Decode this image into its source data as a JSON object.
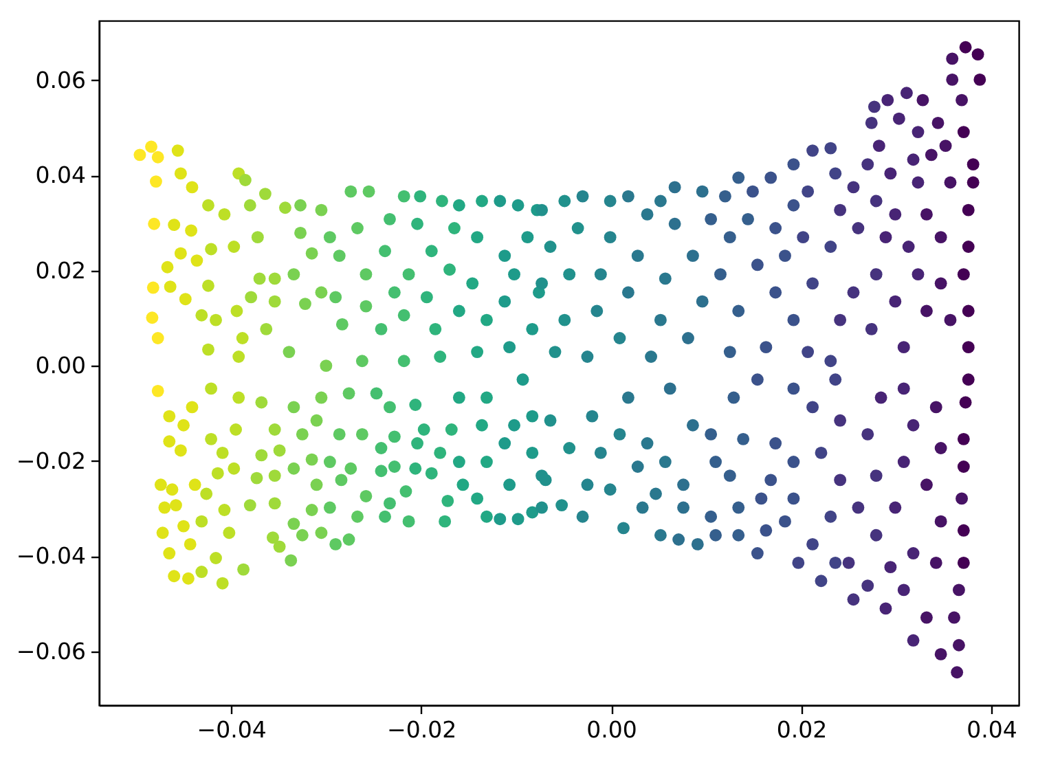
{
  "chart_data": {
    "type": "scatter",
    "marker": "circle",
    "xlim": [
      -0.0539,
      0.0429
    ],
    "ylim": [
      -0.0713,
      0.0725
    ],
    "xticks": [
      {
        "value": -0.04,
        "label": "−0.04"
      },
      {
        "value": -0.02,
        "label": "−0.02"
      },
      {
        "value": 0,
        "label": "0.00"
      },
      {
        "value": 0.02,
        "label": "0.02"
      },
      {
        "value": 0.04,
        "label": "0.04"
      }
    ],
    "yticks": [
      {
        "value": -0.06,
        "label": "−0.06"
      },
      {
        "value": -0.04,
        "label": "−0.04"
      },
      {
        "value": -0.02,
        "label": "−0.02"
      },
      {
        "value": 0,
        "label": "0.00"
      },
      {
        "value": 0.02,
        "label": "0.02"
      },
      {
        "value": 0.04,
        "label": "0.04"
      },
      {
        "value": 0.06,
        "label": "0.06"
      }
    ],
    "x": [
      -0.0496,
      -0.0484,
      -0.0456,
      -0.0477,
      -0.0479,
      -0.0453,
      -0.0441,
      -0.0481,
      -0.046,
      -0.0442,
      -0.0453,
      -0.0467,
      -0.0482,
      -0.0464,
      -0.0483,
      -0.0477,
      -0.0448,
      -0.0436,
      -0.0421,
      -0.0424,
      -0.0407,
      -0.0392,
      -0.0385,
      -0.038,
      -0.0364,
      -0.0397,
      -0.0372,
      -0.0343,
      -0.0327,
      -0.0305,
      -0.0327,
      -0.0296,
      -0.0274,
      -0.0255,
      -0.0267,
      -0.0286,
      -0.0315,
      -0.0354,
      -0.0334,
      -0.037,
      -0.0424,
      -0.0431,
      -0.0416,
      -0.0394,
      -0.0379,
      -0.0363,
      -0.0354,
      -0.0322,
      -0.0305,
      -0.0283,
      -0.029,
      -0.0258,
      -0.0258,
      -0.0238,
      -0.0233,
      -0.0218,
      -0.0201,
      -0.0204,
      -0.0189,
      -0.0213,
      -0.0228,
      -0.0242,
      -0.0218,
      -0.0194,
      -0.0185,
      -0.0178,
      -0.016,
      -0.0136,
      -0.0165,
      -0.0141,
      -0.017,
      -0.0146,
      -0.016,
      -0.0131,
      -0.0117,
      -0.0098,
      -0.0078,
      -0.0112,
      -0.0088,
      -0.0102,
      -0.0076,
      -0.0112,
      -0.0083,
      -0.0107,
      -0.0141,
      -0.018,
      -0.0218,
      -0.0262,
      -0.03,
      -0.0339,
      -0.0392,
      -0.0424,
      -0.0388,
      -0.0477,
      -0.0465,
      -0.045,
      -0.0465,
      -0.0453,
      -0.0474,
      -0.0462,
      -0.047,
      -0.0458,
      -0.0472,
      -0.045,
      -0.0465,
      -0.0443,
      -0.046,
      -0.0445,
      -0.0431,
      -0.0409,
      -0.0416,
      -0.0431,
      -0.0402,
      -0.0387,
      -0.0407,
      -0.0438,
      -0.0426,
      -0.0414,
      -0.0397,
      -0.0421,
      -0.0409,
      -0.0395,
      -0.0441,
      -0.0421,
      -0.0392,
      -0.038,
      -0.0373,
      -0.0354,
      -0.0368,
      -0.0349,
      -0.0356,
      -0.0349,
      -0.0337,
      -0.0354,
      -0.0334,
      -0.0325,
      -0.0305,
      -0.029,
      -0.0276,
      -0.0315,
      -0.0296,
      -0.031,
      -0.0334,
      -0.0315,
      -0.0296,
      -0.0274,
      -0.0284,
      -0.0354,
      -0.0325,
      -0.031,
      -0.0286,
      -0.0334,
      -0.0368,
      -0.0305,
      -0.0276,
      -0.0262,
      -0.0258,
      -0.0267,
      -0.0238,
      -0.0233,
      -0.0213,
      -0.0216,
      -0.0242,
      -0.0228,
      -0.0206,
      -0.0242,
      -0.0228,
      -0.0204,
      -0.0197,
      -0.0233,
      -0.0206,
      -0.0247,
      -0.0189,
      -0.0172,
      -0.0175,
      -0.018,
      -0.0168,
      -0.016,
      -0.0156,
      -0.0141,
      -0.0131,
      -0.0117,
      -0.0098,
      -0.0083,
      -0.0107,
      -0.0131,
      -0.0112,
      -0.0136,
      -0.0102,
      -0.0083,
      -0.016,
      -0.0131,
      -0.0093,
      -0.0073,
      -0.0083,
      -0.0064,
      -0.0069,
      -0.0073,
      -0.0052,
      -0.003,
      -0.0044,
      -0.002,
      -0.0011,
      -0.0025,
      -0.0001,
      0.0013,
      0.0033,
      0.0052,
      0.0071,
      0.0091,
      0.011,
      0.0134,
      0.0154,
      0.0163,
      0.0158,
      0.0134,
      0.0105,
      0.0076,
      0.0047,
      0.0028,
      0.0009,
      0.0018,
      0.0038,
      0.0057,
      0.0076,
      0.0086,
      0.0062,
      0.011,
      0.0125,
      0.0105,
      0.0139,
      0.0129,
      0.0154,
      0.0173,
      0.0168,
      0.0192,
      0.0192,
      0.0197,
      0.0221,
      0.0212,
      0.0236,
      0.0255,
      0.027,
      0.0289,
      0.0308,
      0.0318,
      0.0332,
      0.0347,
      0.0364,
      0.0366,
      0.0361,
      0.0366,
      0.0371,
      0.0371,
      0.0369,
      0.0371,
      0.0371,
      0.0373,
      0.0376,
      0.0342,
      0.0347,
      0.0332,
      0.0347,
      0.0342,
      0.0318,
      0.0299,
      0.0308,
      0.0318,
      0.0308,
      0.0279,
      0.026,
      0.0279,
      0.027,
      0.0284,
      0.025,
      0.0231,
      0.0241,
      0.0221,
      0.0241,
      0.0212,
      0.0192,
      0.0236,
      0.0183,
      0.0294,
      0.0373,
      0.0386,
      0.0359,
      0.0388,
      0.0359,
      0.0369,
      0.0277,
      0.0291,
      0.0311,
      0.0328,
      0.0274,
      0.0303,
      0.0323,
      0.0344,
      0.0371,
      0.0282,
      0.0352,
      0.0381,
      0.0337,
      0.0318,
      0.0381,
      0.0357,
      0.0323,
      0.0294,
      0.027,
      0.0255,
      0.0212,
      0.0231,
      0.0192,
      0.0168,
      0.0134,
      0.0149,
      0.012,
      0.0096,
      0.0067,
      0.0052,
      0.0018,
      -0.0001,
      -0.003,
      -0.0049,
      -0.0073,
      0.0207,
      0.0236,
      0.0376,
      0.0376,
      0.0371,
      0.0376,
      0.0376,
      0.0347,
      0.0347,
      0.0357,
      0.0332,
      0.0323,
      0.0332,
      0.0313,
      0.0299,
      0.0279,
      0.0289,
      0.0279,
      0.0299,
      0.0308,
      0.0274,
      0.026,
      0.0241,
      0.0231,
      0.0255,
      0.0241,
      0.0231,
      0.0212,
      0.0202,
      0.0192,
      0.0173,
      0.0183,
      0.0192,
      0.0207,
      0.0173,
      0.0163,
      0.0154,
      0.0144,
      0.0125,
      0.0115,
      0.0134,
      0.0125,
      0.0105,
      0.0086,
      0.0096,
      0.0081,
      0.0067,
      0.0057,
      0.0052,
      0.0042,
      0.0038,
      0.0028,
      0.0018,
      0.0009,
      -0.0001,
      -0.0011,
      -0.0015,
      -0.0025,
      -0.0035,
      -0.0044,
      -0.0049,
      -0.0059,
      -0.0064,
      -0.0073
    ],
    "values": [
      0.0443,
      0.046,
      0.0452,
      0.0438,
      0.0387,
      0.0404,
      0.0375,
      0.0298,
      0.0296,
      0.0284,
      0.0236,
      0.0207,
      0.0164,
      0.0166,
      0.0101,
      0.0058,
      0.014,
      0.0221,
      0.0245,
      0.0337,
      0.0318,
      0.0404,
      0.039,
      0.0337,
      0.0361,
      0.025,
      0.027,
      0.0332,
      0.0337,
      0.0327,
      0.0279,
      0.027,
      0.0366,
      0.0366,
      0.0289,
      0.0231,
      0.0236,
      0.0183,
      0.0192,
      0.0183,
      0.0168,
      0.0106,
      0.0096,
      0.0115,
      0.0144,
      0.0077,
      0.0135,
      0.013,
      0.0154,
      0.0087,
      0.0144,
      0.0125,
      0.0192,
      0.0241,
      0.0308,
      0.0356,
      0.0356,
      0.0298,
      0.0241,
      0.0192,
      0.0154,
      0.0077,
      0.0106,
      0.0144,
      0.0077,
      0.0346,
      0.0337,
      0.0346,
      0.0289,
      0.027,
      0.0202,
      0.0173,
      0.0115,
      0.0096,
      0.0346,
      0.0337,
      0.0327,
      0.0231,
      0.027,
      0.0192,
      0.0154,
      0.0135,
      0.0077,
      0.0039,
      0.0029,
      0.0019,
      0.001,
      0.001,
      0.0,
      0.0029,
      0.0019,
      0.0034,
      0.0058,
      -0.0053,
      -0.0106,
      -0.0125,
      -0.0159,
      -0.0178,
      -0.025,
      -0.026,
      -0.0298,
      -0.0293,
      -0.0351,
      -0.0337,
      -0.0394,
      -0.0375,
      -0.0442,
      -0.0447,
      -0.0433,
      -0.0457,
      -0.0404,
      -0.0327,
      -0.0351,
      -0.0428,
      -0.0303,
      -0.025,
      -0.0269,
      -0.0226,
      -0.0216,
      -0.0154,
      -0.0183,
      -0.0134,
      -0.0087,
      -0.0048,
      -0.0067,
      -0.0293,
      -0.0236,
      -0.0231,
      -0.0188,
      -0.0178,
      -0.0361,
      -0.038,
      -0.0409,
      -0.0289,
      -0.0332,
      -0.0356,
      -0.0351,
      -0.0375,
      -0.0365,
      -0.0303,
      -0.0298,
      -0.025,
      -0.0216,
      -0.0197,
      -0.0202,
      -0.0216,
      -0.024,
      -0.0134,
      -0.0144,
      -0.0115,
      -0.0144,
      -0.0087,
      -0.0077,
      -0.0067,
      -0.0058,
      -0.0144,
      -0.0274,
      -0.0317,
      -0.0317,
      -0.0289,
      -0.0327,
      -0.0264,
      -0.0221,
      -0.0212,
      -0.0216,
      -0.0173,
      -0.0149,
      -0.0163,
      -0.0134,
      -0.0087,
      -0.0082,
      -0.0058,
      -0.0226,
      -0.0284,
      -0.0327,
      -0.0183,
      -0.0134,
      -0.0202,
      -0.025,
      -0.0279,
      -0.0317,
      -0.0322,
      -0.0322,
      -0.0308,
      -0.025,
      -0.0202,
      -0.0163,
      -0.0125,
      -0.0125,
      -0.0106,
      -0.0067,
      -0.0067,
      -0.0029,
      -0.0231,
      -0.0183,
      -0.0115,
      -0.024,
      -0.0298,
      -0.0293,
      -0.0317,
      -0.0173,
      -0.0106,
      -0.0183,
      -0.025,
      -0.026,
      -0.0341,
      -0.0298,
      -0.0356,
      -0.0365,
      -0.0375,
      -0.0356,
      -0.0356,
      -0.0394,
      -0.0346,
      -0.0279,
      -0.0298,
      -0.0317,
      -0.0298,
      -0.0269,
      -0.0212,
      -0.0144,
      -0.0067,
      -0.0163,
      -0.0202,
      -0.025,
      -0.0125,
      -0.0048,
      -0.0202,
      -0.0231,
      -0.0144,
      -0.0154,
      -0.0067,
      -0.0029,
      -0.0163,
      -0.024,
      -0.0202,
      -0.0279,
      -0.0414,
      -0.0452,
      -0.0375,
      -0.0414,
      -0.0491,
      -0.0462,
      -0.051,
      -0.0471,
      -0.0577,
      -0.0529,
      -0.0606,
      -0.0644,
      -0.0587,
      -0.0529,
      -0.0471,
      -0.0414,
      -0.0346,
      -0.0279,
      -0.0212,
      -0.0154,
      -0.0077,
      -0.0029,
      -0.0414,
      -0.0327,
      -0.025,
      -0.0173,
      -0.0087,
      -0.0394,
      -0.0298,
      -0.0202,
      -0.0125,
      -0.0048,
      -0.0356,
      -0.0298,
      -0.0231,
      -0.0144,
      -0.0067,
      -0.0414,
      -0.0317,
      -0.024,
      -0.0183,
      -0.0115,
      -0.0087,
      -0.0048,
      -0.0029,
      -0.0327,
      -0.0423,
      0.0669,
      0.0654,
      0.0645,
      0.0601,
      0.0601,
      0.0558,
      0.0544,
      0.0558,
      0.0573,
      0.0558,
      0.051,
      0.0519,
      0.0491,
      0.051,
      0.0491,
      0.0462,
      0.0462,
      0.0423,
      0.0443,
      0.0433,
      0.0385,
      0.0385,
      0.0385,
      0.0404,
      0.0423,
      0.0375,
      0.0452,
      0.0457,
      0.0423,
      0.0395,
      0.0395,
      0.0366,
      0.0356,
      0.0366,
      0.0375,
      0.0346,
      0.0356,
      0.0346,
      0.0356,
      0.0346,
      0.0327,
      0.0366,
      0.0404,
      0.0327,
      0.025,
      0.0192,
      0.0115,
      0.0039,
      0.027,
      0.0173,
      0.0096,
      0.0318,
      0.0192,
      0.0115,
      0.025,
      0.0318,
      0.0346,
      0.027,
      0.0192,
      0.0135,
      0.0039,
      0.0077,
      0.0289,
      0.0327,
      0.025,
      0.0154,
      0.0096,
      0.001,
      0.0173,
      0.027,
      0.0337,
      0.0289,
      0.0231,
      0.0096,
      0.0029,
      0.0154,
      0.0039,
      0.0212,
      0.0308,
      0.027,
      0.0192,
      0.0115,
      0.0029,
      0.0308,
      0.0231,
      0.0135,
      0.0058,
      0.0298,
      0.0183,
      0.0096,
      0.0019,
      0.0318,
      0.0231,
      0.0154,
      0.0058,
      0.027,
      0.0192,
      0.0115,
      0.0019,
      0.0289,
      0.0192,
      0.0096,
      0.0029,
      0.025,
      0.0173
    ],
    "colors": [
      "#fde725",
      "#fde725",
      "#dfe318",
      "#fde725",
      "#fde725",
      "#dfe318",
      "#dfe318",
      "#fde725",
      "#dfe318",
      "#dfe318",
      "#dfe318",
      "#dfe318",
      "#fde725",
      "#dfe318",
      "#fde725",
      "#fde725",
      "#dfe318",
      "#dfe318",
      "#bddf26",
      "#bddf26",
      "#bddf26",
      "#bddf26",
      "#9fda3a",
      "#9fda3a",
      "#9fda3a",
      "#bddf26",
      "#9fda3a",
      "#9fda3a",
      "#7ad151",
      "#7ad151",
      "#7ad151",
      "#5ec962",
      "#5ec962",
      "#5ec962",
      "#5ec962",
      "#5ec962",
      "#7ad151",
      "#9fda3a",
      "#7ad151",
      "#9fda3a",
      "#bddf26",
      "#bddf26",
      "#bddf26",
      "#bddf26",
      "#9fda3a",
      "#9fda3a",
      "#9fda3a",
      "#7ad151",
      "#7ad151",
      "#5ec962",
      "#5ec962",
      "#5ec962",
      "#5ec962",
      "#44bf70",
      "#44bf70",
      "#44bf70",
      "#2fb47c",
      "#2fb47c",
      "#2fb47c",
      "#44bf70",
      "#44bf70",
      "#44bf70",
      "#44bf70",
      "#2fb47c",
      "#2fb47c",
      "#2fb47c",
      "#22a884",
      "#22a884",
      "#2fb47c",
      "#22a884",
      "#2fb47c",
      "#22a884",
      "#22a884",
      "#22a884",
      "#1e9b8a",
      "#1e9b8a",
      "#1e9b8a",
      "#1e9b8a",
      "#1e9b8a",
      "#1e9b8a",
      "#1e9b8a",
      "#1e9b8a",
      "#1e9b8a",
      "#1e9b8a",
      "#22a884",
      "#2fb47c",
      "#44bf70",
      "#5ec962",
      "#7ad151",
      "#7ad151",
      "#bddf26",
      "#bddf26",
      "#bddf26",
      "#fde725",
      "#dfe318",
      "#dfe318",
      "#dfe318",
      "#dfe318",
      "#dfe318",
      "#dfe318",
      "#dfe318",
      "#dfe318",
      "#dfe318",
      "#dfe318",
      "#dfe318",
      "#dfe318",
      "#dfe318",
      "#dfe318",
      "#bddf26",
      "#bddf26",
      "#bddf26",
      "#bddf26",
      "#bddf26",
      "#9fda3a",
      "#bddf26",
      "#dfe318",
      "#bddf26",
      "#bddf26",
      "#bddf26",
      "#bddf26",
      "#bddf26",
      "#bddf26",
      "#dfe318",
      "#bddf26",
      "#bddf26",
      "#9fda3a",
      "#9fda3a",
      "#9fda3a",
      "#9fda3a",
      "#9fda3a",
      "#9fda3a",
      "#9fda3a",
      "#7ad151",
      "#9fda3a",
      "#7ad151",
      "#7ad151",
      "#7ad151",
      "#5ec962",
      "#5ec962",
      "#7ad151",
      "#5ec962",
      "#7ad151",
      "#7ad151",
      "#7ad151",
      "#5ec962",
      "#5ec962",
      "#5ec962",
      "#9fda3a",
      "#7ad151",
      "#7ad151",
      "#5ec962",
      "#7ad151",
      "#9fda3a",
      "#7ad151",
      "#5ec962",
      "#5ec962",
      "#5ec962",
      "#5ec962",
      "#44bf70",
      "#44bf70",
      "#44bf70",
      "#44bf70",
      "#44bf70",
      "#44bf70",
      "#2fb47c",
      "#44bf70",
      "#44bf70",
      "#2fb47c",
      "#2fb47c",
      "#44bf70",
      "#2fb47c",
      "#44bf70",
      "#2fb47c",
      "#2fb47c",
      "#2fb47c",
      "#2fb47c",
      "#2fb47c",
      "#22a884",
      "#22a884",
      "#22a884",
      "#22a884",
      "#1e9b8a",
      "#1e9b8a",
      "#1e9b8a",
      "#1e9b8a",
      "#22a884",
      "#1e9b8a",
      "#22a884",
      "#1e9b8a",
      "#1e9b8a",
      "#22a884",
      "#22a884",
      "#1e9b8a",
      "#21918c",
      "#1e9b8a",
      "#21918c",
      "#21918c",
      "#21918c",
      "#21918c",
      "#25858e",
      "#21918c",
      "#25858e",
      "#25858e",
      "#25858e",
      "#25858e",
      "#25858e",
      "#2a788e",
      "#2a788e",
      "#2d708e",
      "#2d708e",
      "#355f8d",
      "#355f8d",
      "#3b528b",
      "#3b528b",
      "#3b528b",
      "#355f8d",
      "#355f8d",
      "#2d708e",
      "#2a788e",
      "#2a788e",
      "#25858e",
      "#2a788e",
      "#2a788e",
      "#2a788e",
      "#2d708e",
      "#2d708e",
      "#2d708e",
      "#355f8d",
      "#355f8d",
      "#355f8d",
      "#355f8d",
      "#355f8d",
      "#3b528b",
      "#3b528b",
      "#3b528b",
      "#3b528b",
      "#3b528b",
      "#414487",
      "#414487",
      "#414487",
      "#414487",
      "#46337e",
      "#46337e",
      "#482475",
      "#482475",
      "#482475",
      "#471365",
      "#471365",
      "#471365",
      "#471365",
      "#471365",
      "#471365",
      "#440154",
      "#440154",
      "#471365",
      "#440154",
      "#440154",
      "#440154",
      "#440154",
      "#471365",
      "#471365",
      "#471365",
      "#471365",
      "#471365",
      "#482475",
      "#482475",
      "#482475",
      "#482475",
      "#482475",
      "#46337e",
      "#46337e",
      "#46337e",
      "#46337e",
      "#482475",
      "#46337e",
      "#414487",
      "#46337e",
      "#414487",
      "#46337e",
      "#414487",
      "#3b528b",
      "#414487",
      "#3b528b",
      "#482475",
      "#440154",
      "#440154",
      "#471365",
      "#440154",
      "#471365",
      "#471365",
      "#46337e",
      "#482475",
      "#482475",
      "#471365",
      "#46337e",
      "#482475",
      "#482475",
      "#471365",
      "#440154",
      "#482475",
      "#471365",
      "#440154",
      "#471365",
      "#482475",
      "#440154",
      "#471365",
      "#482475",
      "#482475",
      "#46337e",
      "#46337e",
      "#414487",
      "#414487",
      "#3b528b",
      "#3b528b",
      "#355f8d",
      "#3b528b",
      "#355f8d",
      "#2d708e",
      "#2d708e",
      "#2a788e",
      "#2a788e",
      "#25858e",
      "#25858e",
      "#21918c",
      "#21918c",
      "#414487",
      "#414487",
      "#440154",
      "#440154",
      "#440154",
      "#440154",
      "#440154",
      "#471365",
      "#471365",
      "#471365",
      "#471365",
      "#482475",
      "#471365",
      "#482475",
      "#482475",
      "#46337e",
      "#482475",
      "#46337e",
      "#482475",
      "#482475",
      "#46337e",
      "#46337e",
      "#46337e",
      "#414487",
      "#46337e",
      "#46337e",
      "#414487",
      "#414487",
      "#414487",
      "#3b528b",
      "#3b528b",
      "#3b528b",
      "#3b528b",
      "#414487",
      "#3b528b",
      "#3b528b",
      "#3b528b",
      "#355f8d",
      "#355f8d",
      "#355f8d",
      "#355f8d",
      "#355f8d",
      "#355f8d",
      "#2d708e",
      "#2d708e",
      "#2d708e",
      "#2d708e",
      "#2a788e",
      "#2a788e",
      "#2a788e",
      "#2a788e",
      "#2a788e",
      "#2a788e",
      "#25858e",
      "#25858e",
      "#25858e",
      "#25858e",
      "#25858e",
      "#21918c",
      "#21918c",
      "#21918c",
      "#21918c",
      "#21918c",
      "#21918c"
    ]
  }
}
